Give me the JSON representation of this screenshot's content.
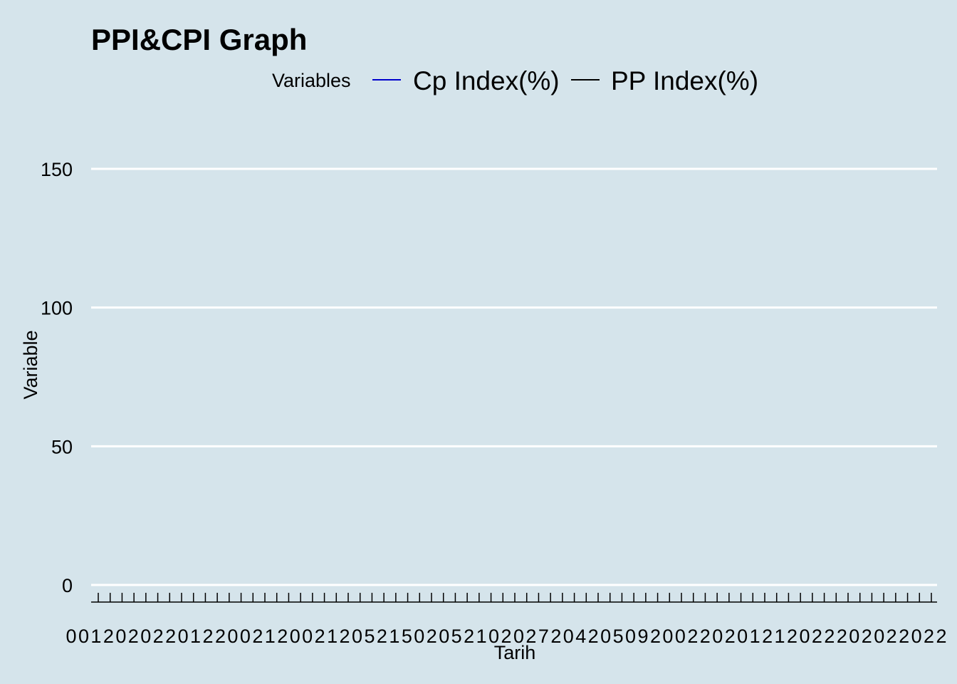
{
  "colors": {
    "background": "#d5e4eb",
    "gridline": "#ffffff",
    "axis": "#000000"
  },
  "chart_data": {
    "type": "line",
    "title": "PPI&CPI Graph",
    "xlabel": "Tarih",
    "ylabel": "Variable",
    "ylim": [
      0,
      160
    ],
    "y_ticks": [
      0,
      50,
      100,
      150
    ],
    "grid": true,
    "legend": {
      "title": "Variables",
      "placement": "top",
      "entries": [
        {
          "label": "Cp Index(%)",
          "color": "#0000cc"
        },
        {
          "label": "PP Index(%)",
          "color": "#000000"
        }
      ]
    },
    "x_tick_labels": [
      "0",
      "0",
      "1",
      "2",
      "0",
      "2",
      "0",
      "2",
      "2",
      "0",
      "1",
      "2",
      "2",
      "0",
      "0",
      "2",
      "1",
      "2",
      "0",
      "0",
      "2",
      "1",
      "2",
      "0",
      "5",
      "2",
      "1",
      "5",
      "0",
      "2",
      "0",
      "5",
      "2",
      "1",
      "0",
      "2",
      "0",
      "2",
      "7",
      "2",
      "0",
      "4",
      "2",
      "0",
      "5",
      "0",
      "9",
      "2",
      "0",
      "0",
      "2",
      "2",
      "0",
      "2",
      "0",
      "1",
      "2",
      "1",
      "2",
      "0",
      "2",
      "2",
      "2",
      "0",
      "2",
      "0",
      "2",
      "2",
      "0",
      "2",
      "2"
    ],
    "series": [
      {
        "name": "Cp Index(%)",
        "values": []
      },
      {
        "name": "PP Index(%)",
        "values": []
      }
    ]
  }
}
